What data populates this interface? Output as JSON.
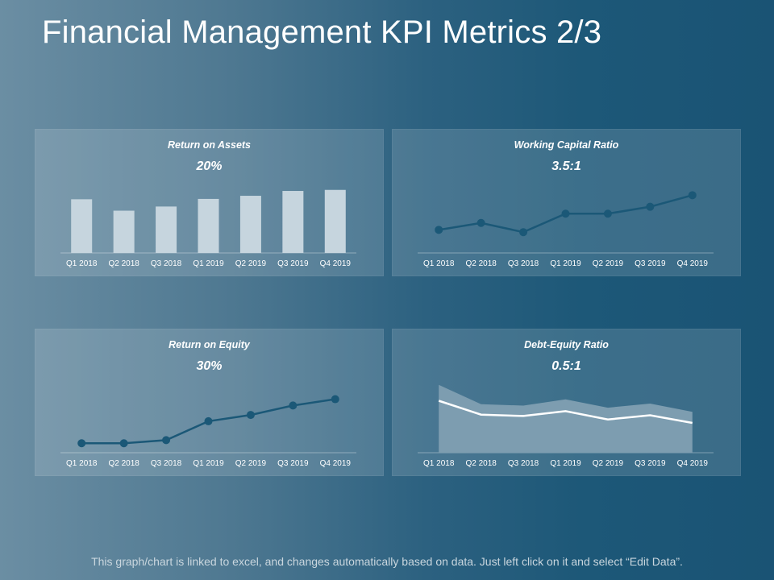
{
  "page": {
    "title": "Financial Management KPI Metrics 2/3",
    "footer": "This graph/chart is linked to excel, and changes automatically based on data. Just left click on it and select “Edit Data”."
  },
  "colors": {
    "bar_fill": "#c6d5de",
    "line_dark": "#1b5877",
    "area_fill": "#7d9db0",
    "line_white": "#ffffff"
  },
  "chart_data": [
    {
      "type": "bar",
      "title": "Return on Assets",
      "headline": "20%",
      "categories": [
        "Q1 2018",
        "Q2 2018",
        "Q3 2018",
        "Q1 2019",
        "Q2 2019",
        "Q3 2019",
        "Q4 2019"
      ],
      "values": [
        15.5,
        12.2,
        13.4,
        15.6,
        16.5,
        17.9,
        18.2
      ],
      "ylim": [
        0,
        20
      ]
    },
    {
      "type": "line",
      "title": "Working Capital Ratio",
      "headline": "3.5:1",
      "categories": [
        "Q1 2018",
        "Q2 2018",
        "Q3 2018",
        "Q1 2019",
        "Q2 2019",
        "Q3 2019",
        "Q4 2019"
      ],
      "values": [
        2.0,
        2.3,
        1.9,
        2.7,
        2.7,
        3.0,
        3.5
      ],
      "ylim": [
        1,
        4
      ]
    },
    {
      "type": "line",
      "title": "Return on Equity",
      "headline": "30%",
      "categories": [
        "Q1 2018",
        "Q2 2018",
        "Q3 2018",
        "Q1 2019",
        "Q2 2019",
        "Q3 2019",
        "Q4 2019"
      ],
      "values": [
        11,
        11,
        12,
        18,
        20,
        23,
        25
      ],
      "ylim": [
        8,
        30
      ]
    },
    {
      "type": "area",
      "title": "Debt-Equity Ratio",
      "headline": "0.5:1",
      "categories": [
        "Q1 2018",
        "Q2 2018",
        "Q3 2018",
        "Q1 2019",
        "Q2 2019",
        "Q3 2019",
        "Q4 2019"
      ],
      "series": [
        {
          "name": "Area",
          "values": [
            0.98,
            0.7,
            0.68,
            0.77,
            0.65,
            0.71,
            0.59
          ]
        },
        {
          "name": "Line",
          "values": [
            0.75,
            0.55,
            0.53,
            0.6,
            0.48,
            0.54,
            0.43
          ]
        }
      ],
      "ylim": [
        0,
        1
      ]
    }
  ]
}
